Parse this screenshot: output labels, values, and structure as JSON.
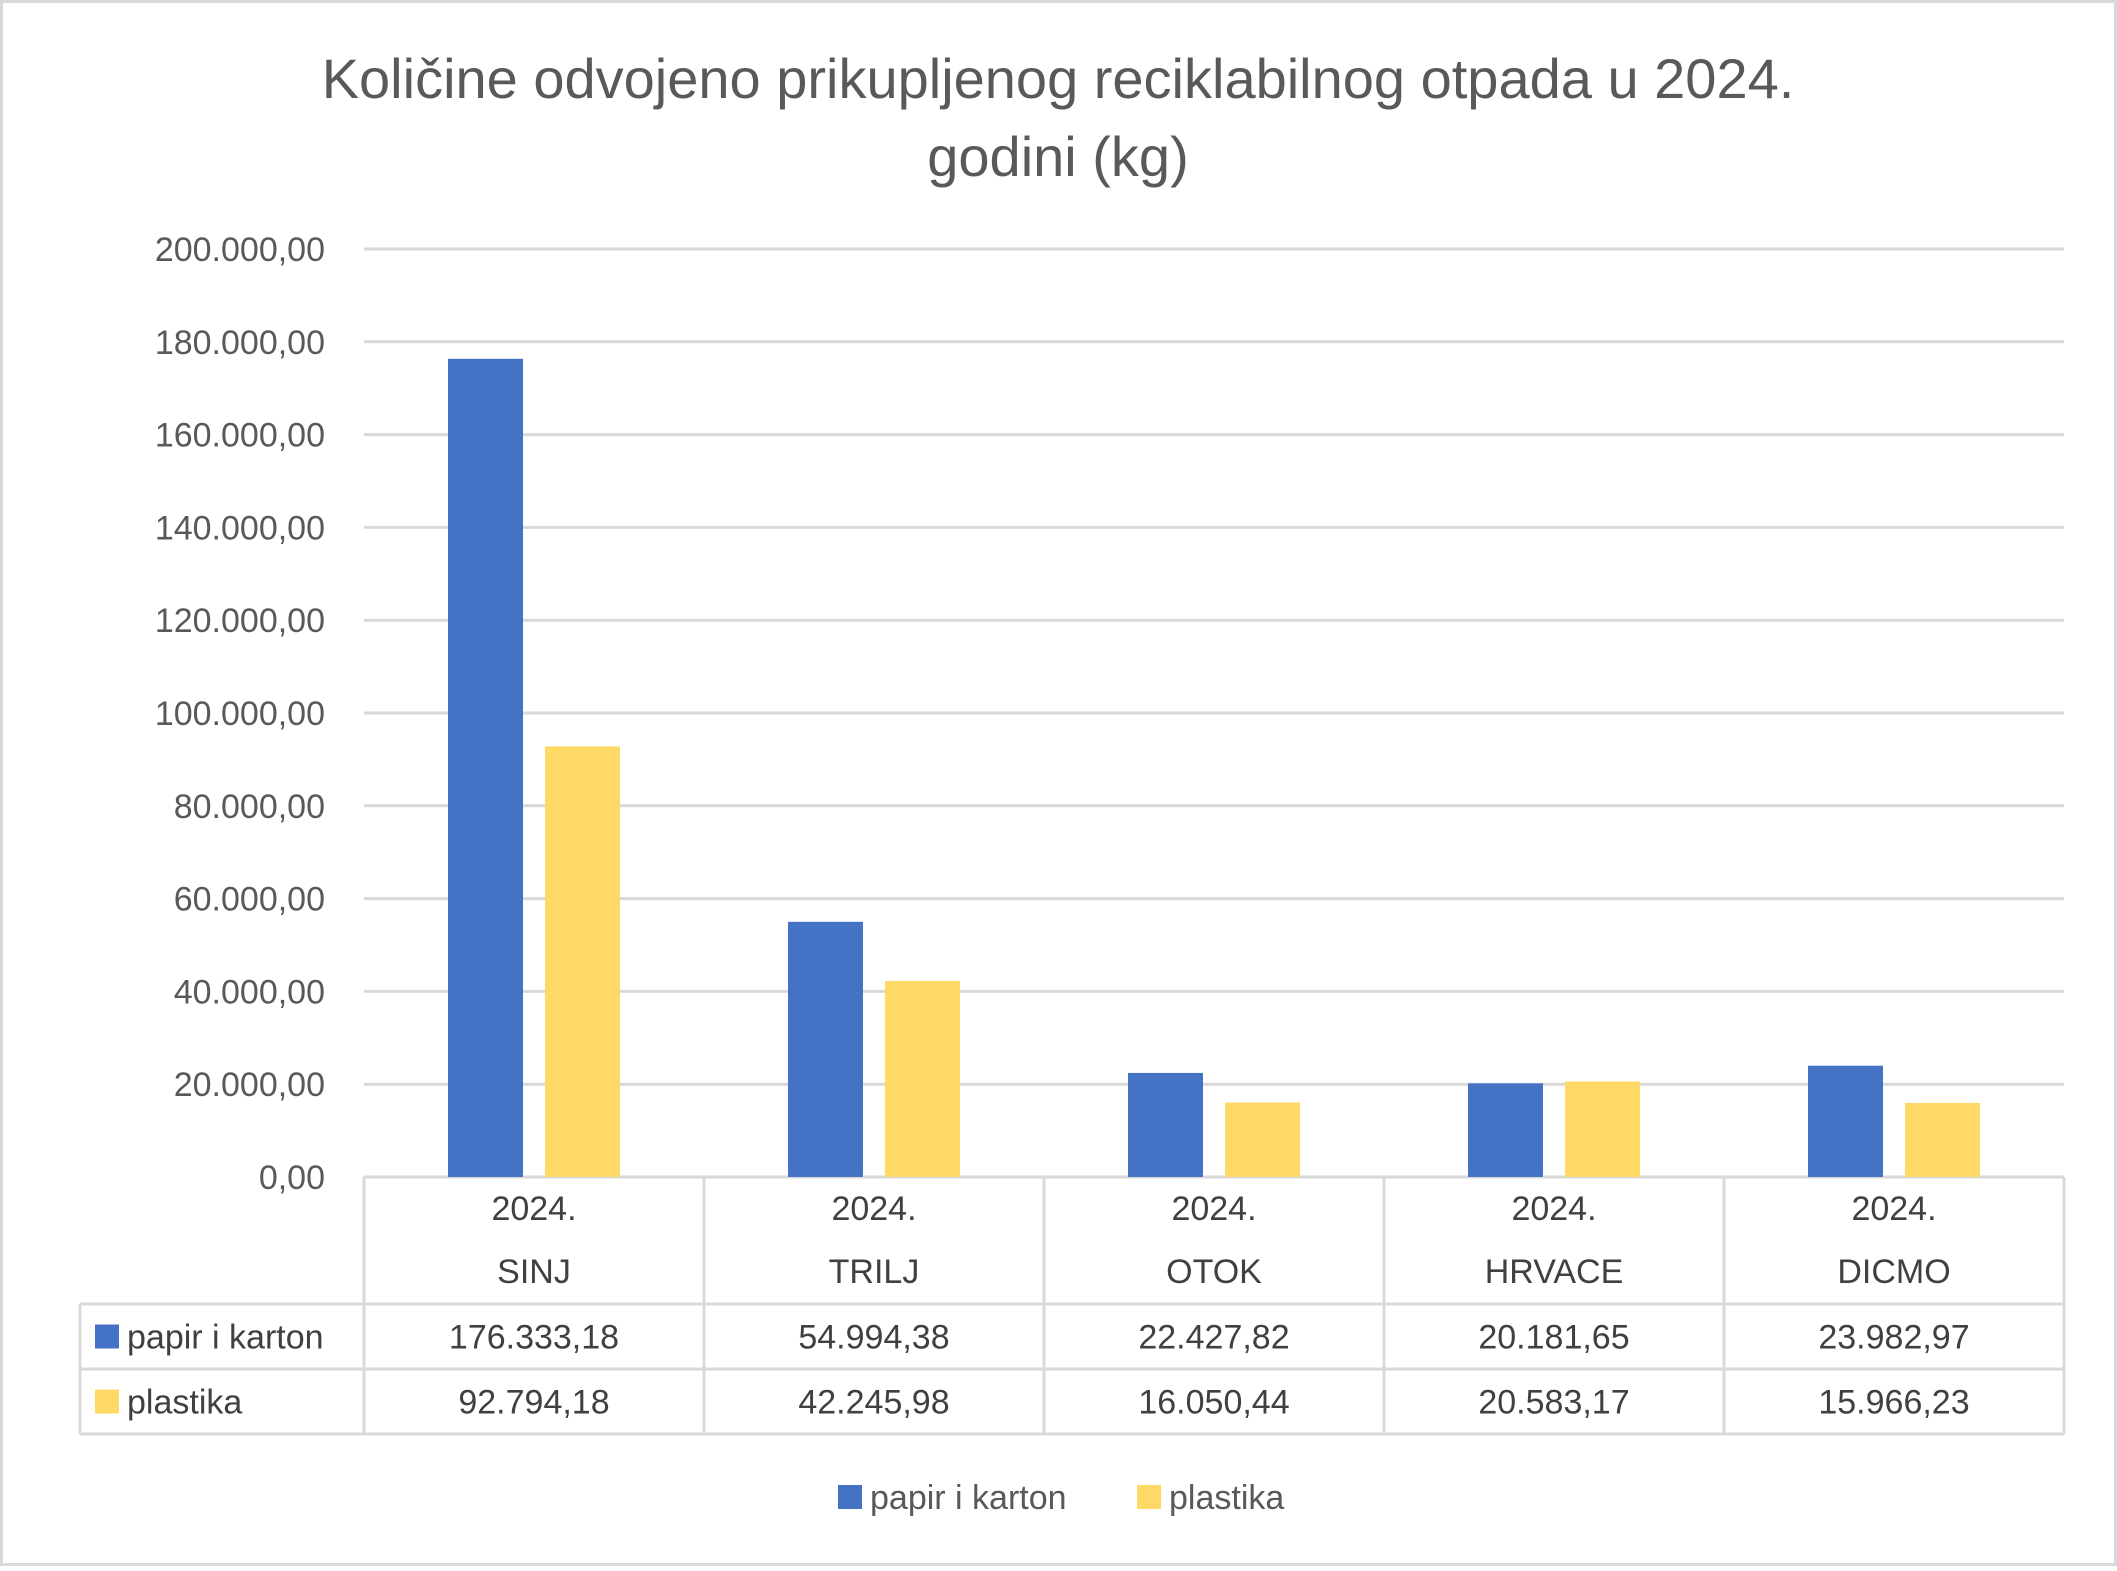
{
  "chart_data": {
    "type": "bar",
    "title_line1": "Količine odvojeno prikupljenog reciklabilnog otpada u 2024.",
    "title_line2": "godini (kg)",
    "categories": [
      {
        "top": "2024.",
        "bottom": "SINJ"
      },
      {
        "top": "2024.",
        "bottom": "TRILJ"
      },
      {
        "top": "2024.",
        "bottom": "OTOK"
      },
      {
        "top": "2024.",
        "bottom": "HRVACE"
      },
      {
        "top": "2024.",
        "bottom": "DICMO"
      }
    ],
    "series": [
      {
        "name": "papir i karton",
        "color": "#4472C4",
        "values": [
          176333.18,
          54994.38,
          22427.82,
          20181.65,
          23982.97
        ],
        "labels": [
          "176.333,18",
          "54.994,38",
          "22.427,82",
          "20.181,65",
          "23.982,97"
        ]
      },
      {
        "name": "plastika",
        "color": "#FFD966",
        "values": [
          92794.18,
          42245.98,
          16050.44,
          20583.17,
          15966.23
        ],
        "labels": [
          "92.794,18",
          "42.245,98",
          "16.050,44",
          "20.583,17",
          "15.966,23"
        ]
      }
    ],
    "ylim": [
      0,
      200000
    ],
    "yticks": [
      0,
      20000,
      40000,
      60000,
      80000,
      100000,
      120000,
      140000,
      160000,
      180000,
      200000
    ],
    "ytick_labels": [
      "0,00",
      "20.000,00",
      "40.000,00",
      "60.000,00",
      "80.000,00",
      "100.000,00",
      "120.000,00",
      "140.000,00",
      "160.000,00",
      "180.000,00",
      "200.000,00"
    ],
    "grid": true,
    "data_table": true,
    "legend_position": "bottom"
  }
}
